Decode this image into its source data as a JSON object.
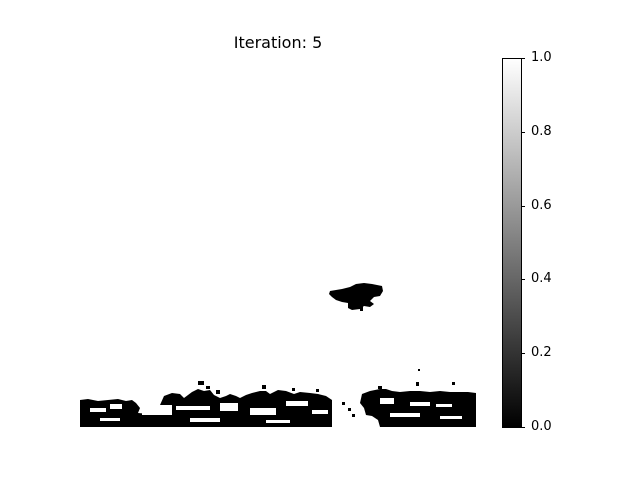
{
  "chart_data": {
    "type": "heatmap",
    "title": "Iteration: 5",
    "axis": "off",
    "colormap": "gray",
    "colorbar": {
      "min": 0.0,
      "max": 1.0,
      "ticks": [
        "0.0",
        "0.2",
        "0.4",
        "0.6",
        "0.8",
        "1.0"
      ]
    },
    "description_values": {
      "background_value": 1.0,
      "foreground_value": 0.0
    }
  }
}
